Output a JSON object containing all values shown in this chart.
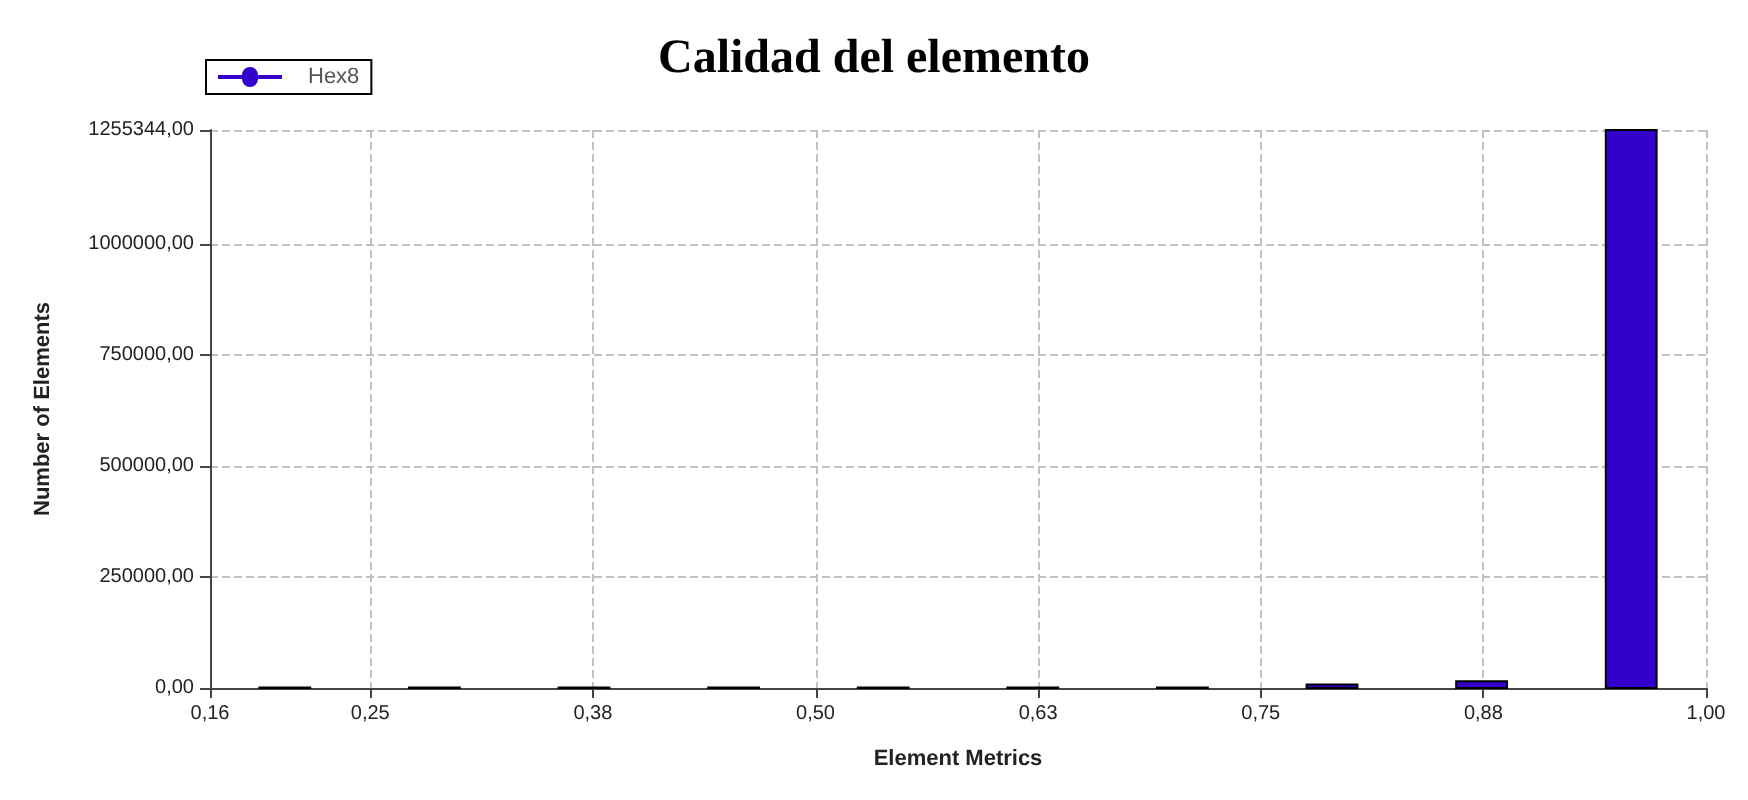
{
  "chart_data": {
    "type": "histogram",
    "title": "Calidad del elemento",
    "xlabel": "Element Metrics",
    "ylabel": "Number of Elements",
    "bins": [
      0.16,
      0.244,
      0.328,
      0.412,
      0.496,
      0.58,
      0.664,
      0.748,
      0.832,
      0.916,
      1.0
    ],
    "series": [
      {
        "name": "Hex8",
        "color": "#3300cc",
        "values": [
          1000,
          1000,
          1000,
          1000,
          1000,
          1000,
          1000,
          8000,
          15000,
          1255344
        ]
      }
    ],
    "xlim": [
      0.16,
      1.0
    ],
    "xticks": [
      {
        "value": 0.16,
        "label": "0,16"
      },
      {
        "value": 0.25,
        "label": "0,25"
      },
      {
        "value": 0.375,
        "label": "0,38"
      },
      {
        "value": 0.5,
        "label": "0,50"
      },
      {
        "value": 0.625,
        "label": "0,63"
      },
      {
        "value": 0.75,
        "label": "0,75"
      },
      {
        "value": 0.875,
        "label": "0,88"
      },
      {
        "value": 1.0,
        "label": "1,00"
      }
    ],
    "ylim": [
      0,
      1255344
    ],
    "yticks": [
      {
        "value": 0,
        "label": "0,00"
      },
      {
        "value": 250000,
        "label": "250000,00"
      },
      {
        "value": 500000,
        "label": "500000,00"
      },
      {
        "value": 750000,
        "label": "750000,00"
      },
      {
        "value": 1000000,
        "label": "1000000,00"
      },
      {
        "value": 1255344,
        "label": "1255344,00"
      }
    ],
    "grid": true,
    "legend": "top left",
    "marker": "circle"
  }
}
